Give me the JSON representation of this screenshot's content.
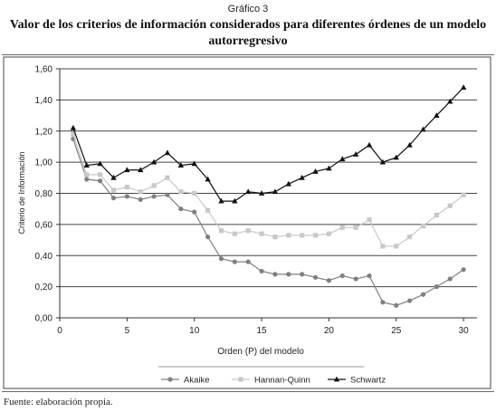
{
  "figure": {
    "suptitle": "Gráfico 3",
    "title": "Valor de los criterios de información considerados para diferentes órdenes de un modelo autorregresivo",
    "source": "Fuente: elaboración propia."
  },
  "chart_data": {
    "type": "line",
    "xlabel": "Orden (P) del modelo",
    "ylabel": "Criterio de Información",
    "xlim": [
      0,
      31
    ],
    "ylim": [
      0,
      1.6
    ],
    "xticks": [
      0,
      5,
      10,
      15,
      20,
      25,
      30
    ],
    "xtick_labels": [
      "0",
      "5",
      "10",
      "15",
      "20",
      "25",
      "30"
    ],
    "yticks": [
      0,
      0.2,
      0.4,
      0.6,
      0.8,
      1.0,
      1.2,
      1.4,
      1.6
    ],
    "ytick_labels": [
      "0,00",
      "0,20",
      "0,40",
      "0,60",
      "0,80",
      "1,00",
      "1,20",
      "1,40",
      "1,60"
    ],
    "grid": "horizontal",
    "legend_position": "bottom",
    "x": [
      1,
      2,
      3,
      4,
      5,
      6,
      7,
      8,
      9,
      10,
      11,
      12,
      13,
      14,
      15,
      16,
      17,
      18,
      19,
      20,
      21,
      22,
      23,
      24,
      25,
      26,
      27,
      28,
      29,
      30
    ],
    "series": [
      {
        "name": "Akaike",
        "marker": "circle",
        "color": "#808080",
        "values": [
          1.15,
          0.89,
          0.88,
          0.77,
          0.78,
          0.76,
          0.78,
          0.79,
          0.7,
          0.68,
          0.52,
          0.38,
          0.36,
          0.36,
          0.3,
          0.28,
          0.28,
          0.28,
          0.26,
          0.24,
          0.27,
          0.25,
          0.27,
          0.1,
          0.08,
          0.11,
          0.15,
          0.2,
          0.25,
          0.31
        ]
      },
      {
        "name": "Hannan-Quinn",
        "marker": "square",
        "color": "#c8c8c8",
        "values": [
          1.18,
          0.92,
          0.92,
          0.82,
          0.84,
          0.81,
          0.85,
          0.9,
          0.81,
          0.8,
          0.69,
          0.56,
          0.54,
          0.56,
          0.54,
          0.52,
          0.53,
          0.53,
          0.53,
          0.54,
          0.58,
          0.58,
          0.63,
          0.46,
          0.46,
          0.52,
          0.59,
          0.66,
          0.72,
          0.79
        ]
      },
      {
        "name": "Schwartz",
        "marker": "triangle",
        "color": "#111111",
        "values": [
          1.22,
          0.98,
          0.99,
          0.9,
          0.95,
          0.95,
          1.0,
          1.06,
          0.98,
          0.99,
          0.89,
          0.75,
          0.75,
          0.81,
          0.8,
          0.81,
          0.86,
          0.9,
          0.94,
          0.96,
          1.02,
          1.05,
          1.11,
          1.0,
          1.03,
          1.11,
          1.21,
          1.3,
          1.39,
          1.48
        ]
      }
    ]
  }
}
